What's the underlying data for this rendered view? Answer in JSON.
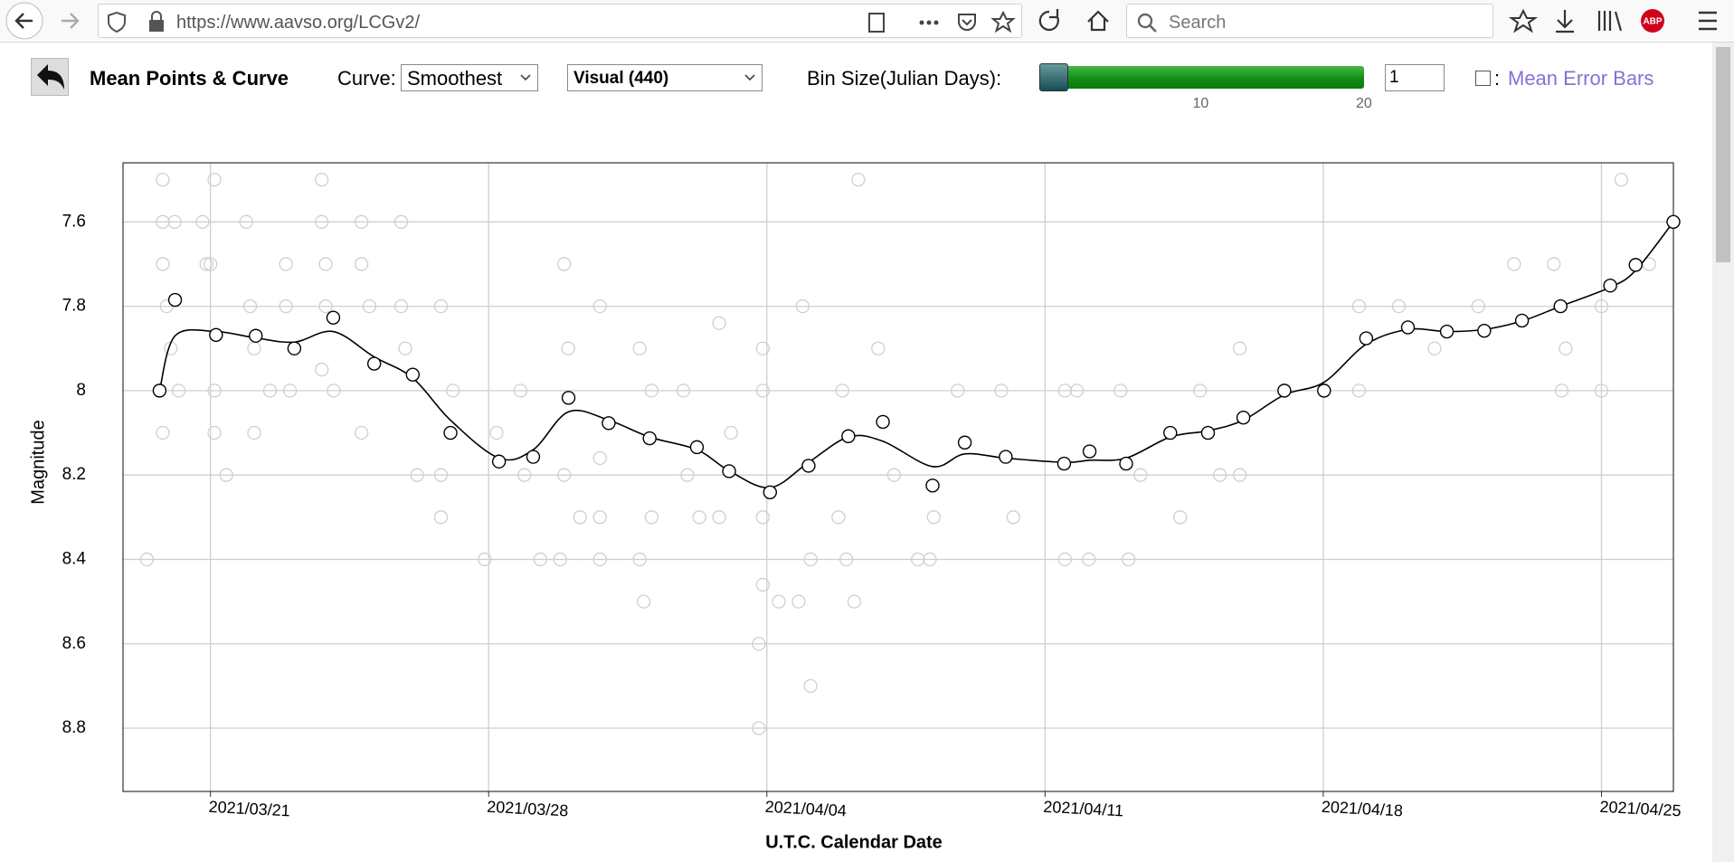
{
  "browser": {
    "url": "https://www.aavso.org/LCGv2/",
    "search_placeholder": "Search",
    "addon_badge": "ABP"
  },
  "toolbar": {
    "title": "Mean Points & Curve",
    "curve_label": "Curve:",
    "curve_option": "Smoothest",
    "band_option": "Visual (440)",
    "bin_label": "Bin Size(Julian Days):",
    "slider": {
      "min": 1,
      "max": 20,
      "value": 1,
      "ticks": [
        10,
        20
      ]
    },
    "bin_input": "1",
    "checkbox_separator": ":",
    "checkbox_label": "Mean Error Bars"
  },
  "chart_data": {
    "type": "scatter",
    "x_label": "U.T.C. Calendar Date",
    "y_label": "Magnitude",
    "y_inverted": true,
    "grid": true,
    "xlim": [
      2459292.3,
      2459331.31
    ],
    "ylim": [
      7.46,
      8.95
    ],
    "xticks": [
      {
        "value": 2459294.5,
        "label": "2021/03/21"
      },
      {
        "value": 2459301.5,
        "label": "2021/03/28"
      },
      {
        "value": 2459308.5,
        "label": "2021/04/04"
      },
      {
        "value": 2459315.5,
        "label": "2021/04/11"
      },
      {
        "value": 2459322.5,
        "label": "2021/04/18"
      },
      {
        "value": 2459329.5,
        "label": "2021/04/25"
      }
    ],
    "yticks": [
      7.6,
      7.8,
      8.0,
      8.2,
      8.4,
      8.6,
      8.8
    ],
    "observations": {
      "color": "#cfcfcf",
      "x": [
        2459292.9,
        2459293.3,
        2459293.3,
        2459293.3,
        2459293.4,
        2459293.5,
        2459293.3,
        2459293.6,
        2459293.7,
        2459294.6,
        2459294.3,
        2459294.4,
        2459294.5,
        2459294.6,
        2459294.6,
        2459294.9,
        2459295.4,
        2459295.5,
        2459295.6,
        2459295.6,
        2459296.0,
        2459296.4,
        2459296.4,
        2459296.5,
        2459297.3,
        2459297.3,
        2459297.4,
        2459297.4,
        2459297.3,
        2459297.6,
        2459298.3,
        2459298.3,
        2459298.3,
        2459298.5,
        2459299.3,
        2459299.3,
        2459299.4,
        2459299.7,
        2459300.3,
        2459300.3,
        2459300.3,
        2459300.6,
        2459301.4,
        2459301.7,
        2459302.3,
        2459302.4,
        2459302.8,
        2459303.4,
        2459303.4,
        2459303.3,
        2459303.5,
        2459303.8,
        2459304.3,
        2459304.3,
        2459304.3,
        2459304.3,
        2459305.3,
        2459305.3,
        2459305.4,
        2459305.6,
        2459305.6,
        2459306.4,
        2459306.5,
        2459306.8,
        2459307.3,
        2459307.3,
        2459307.6,
        2459308.4,
        2459308.4,
        2459308.4,
        2459308.3,
        2459308.3,
        2459308.4,
        2459308.8,
        2459309.3,
        2459309.4,
        2459309.6,
        2459309.6,
        2459310.3,
        2459310.4,
        2459310.5,
        2459310.7,
        2459310.8,
        2459311.3,
        2459311.7,
        2459312.3,
        2459312.6,
        2459312.7,
        2459313.3,
        2459314.4,
        2459314.7,
        2459316.0,
        2459316.0,
        2459316.3,
        2459316.6,
        2459317.4,
        2459317.6,
        2459317.9,
        2459318.9,
        2459319.4,
        2459319.9,
        2459320.4,
        2459320.4,
        2459323.4,
        2459323.4,
        2459324.4,
        2459325.3,
        2459326.4,
        2459327.3,
        2459328.3,
        2459328.5,
        2459328.6,
        2459329.5,
        2459329.5,
        2459330.0,
        2459330.7
      ],
      "values": [
        8.4,
        7.5,
        7.6,
        7.7,
        7.8,
        7.9,
        8.1,
        7.6,
        8.0,
        7.5,
        7.6,
        7.7,
        7.7,
        8.0,
        8.1,
        8.2,
        7.6,
        7.8,
        7.9,
        8.1,
        8.0,
        7.7,
        7.8,
        8.0,
        7.5,
        7.6,
        7.7,
        7.8,
        7.95,
        8.0,
        7.6,
        7.7,
        8.1,
        7.8,
        7.6,
        7.8,
        7.9,
        8.2,
        7.8,
        8.2,
        8.3,
        8.0,
        8.4,
        8.1,
        8.0,
        8.2,
        8.4,
        7.7,
        8.2,
        8.4,
        7.9,
        8.3,
        7.8,
        8.16,
        8.3,
        8.4,
        7.9,
        8.4,
        8.5,
        8.0,
        8.3,
        8.0,
        8.2,
        8.3,
        7.84,
        8.3,
        8.1,
        8.0,
        7.9,
        8.3,
        8.6,
        8.8,
        8.46,
        8.5,
        8.5,
        7.8,
        8.4,
        8.7,
        8.3,
        8.0,
        8.4,
        8.5,
        7.5,
        7.9,
        8.2,
        8.4,
        8.4,
        8.3,
        8.0,
        8.0,
        8.3,
        8.0,
        8.4,
        8.0,
        8.4,
        8.0,
        8.4,
        8.2,
        8.3,
        8.0,
        8.2,
        7.9,
        8.2,
        8.0,
        7.8,
        7.8,
        7.9,
        7.8,
        7.7,
        7.7,
        8.0,
        7.9,
        7.8,
        8.0,
        7.5,
        7.7
      ]
    },
    "mean_points": {
      "color": "#000000",
      "x": [
        2459293.22,
        2459293.61,
        2459294.64,
        2459295.64,
        2459296.61,
        2459297.59,
        2459298.62,
        2459299.59,
        2459300.54,
        2459301.76,
        2459302.62,
        2459303.51,
        2459304.52,
        2459305.55,
        2459306.74,
        2459307.55,
        2459308.58,
        2459309.55,
        2459310.55,
        2459311.42,
        2459312.67,
        2459313.48,
        2459314.51,
        2459315.98,
        2459316.62,
        2459317.54,
        2459318.65,
        2459319.6,
        2459320.49,
        2459321.52,
        2459322.52,
        2459323.58,
        2459324.63,
        2459325.61,
        2459326.55,
        2459327.5,
        2459328.47,
        2459329.72,
        2459330.36,
        2459331.31
      ],
      "values": [
        8.0,
        7.785,
        7.868,
        7.87,
        7.9,
        7.827,
        7.936,
        7.962,
        8.1,
        8.168,
        8.157,
        8.017,
        8.077,
        8.113,
        8.134,
        8.191,
        8.241,
        8.178,
        8.108,
        8.074,
        8.225,
        8.123,
        8.157,
        8.173,
        8.144,
        8.173,
        8.1,
        8.1,
        8.064,
        8.0,
        8.0,
        7.876,
        7.85,
        7.86,
        7.858,
        7.834,
        7.8,
        7.751,
        7.702,
        7.6
      ]
    },
    "curve": {
      "color": "#000000",
      "values": [
        8.0,
        7.87,
        7.86,
        7.875,
        7.885,
        7.86,
        7.92,
        7.97,
        8.07,
        8.16,
        8.14,
        8.05,
        8.07,
        8.11,
        8.14,
        8.19,
        8.23,
        8.17,
        8.11,
        8.12,
        8.18,
        8.15,
        8.16,
        8.17,
        8.165,
        8.16,
        8.11,
        8.095,
        8.07,
        8.01,
        7.98,
        7.89,
        7.855,
        7.86,
        7.855,
        7.835,
        7.8,
        7.755,
        7.715,
        7.6
      ]
    }
  }
}
